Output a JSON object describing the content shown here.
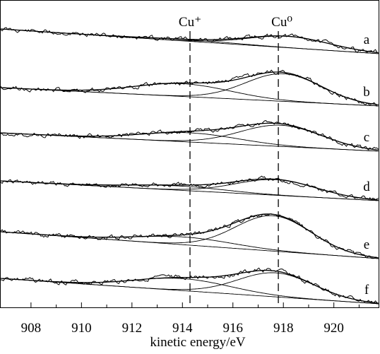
{
  "chart_data": {
    "type": "line",
    "title": "",
    "xlabel": "kinetic energy/eV",
    "ylabel": "",
    "xlim": [
      906.8,
      921.8
    ],
    "x_ticks": [
      908,
      910,
      912,
      914,
      916,
      918,
      920
    ],
    "x_tick_labels": [
      "908",
      "910",
      "912",
      "914",
      "916",
      "918",
      "920"
    ],
    "grid": false,
    "vertical_markers": [
      {
        "label": "Cu⁺",
        "x": 914.3
      },
      {
        "label": "Cu⁰",
        "x": 917.8
      }
    ],
    "series": [
      {
        "name": "a",
        "baseline": [
          41,
          76
        ],
        "cu_plus": {
          "center": 914.3,
          "amp": 2,
          "width": 1.9
        },
        "cu0": {
          "center": 918.2,
          "amp": 16,
          "width": 1.6
        },
        "seed": 11
      },
      {
        "name": "b",
        "baseline": [
          124,
          150
        ],
        "cu_plus": {
          "center": 914.0,
          "amp": 18,
          "width": 1.9
        },
        "cu0": {
          "center": 918.0,
          "amp": 39,
          "width": 1.5
        },
        "seed": 23
      },
      {
        "name": "c",
        "baseline": [
          188,
          214
        ],
        "cu_plus": {
          "center": 914.3,
          "amp": 13,
          "width": 1.9
        },
        "cu0": {
          "center": 917.9,
          "amp": 30,
          "width": 1.6
        },
        "seed": 37
      },
      {
        "name": "d",
        "baseline": [
          256,
          284
        ],
        "cu_plus": {
          "center": 913.8,
          "amp": 6,
          "width": 1.9
        },
        "cu0": {
          "center": 917.7,
          "amp": 22,
          "width": 1.6
        },
        "seed": 41
      },
      {
        "name": "e",
        "baseline": [
          328,
          366
        ],
        "cu_plus": {
          "center": 914.1,
          "amp": 11,
          "width": 1.9
        },
        "cu0": {
          "center": 917.6,
          "amp": 50,
          "width": 1.5
        },
        "seed": 53
      },
      {
        "name": "f",
        "baseline": [
          394,
          430
        ],
        "cu_plus": {
          "center": 914.0,
          "amp": 17,
          "width": 1.9
        },
        "cu0": {
          "center": 917.7,
          "amp": 34,
          "width": 1.5
        },
        "seed": 67
      }
    ]
  }
}
